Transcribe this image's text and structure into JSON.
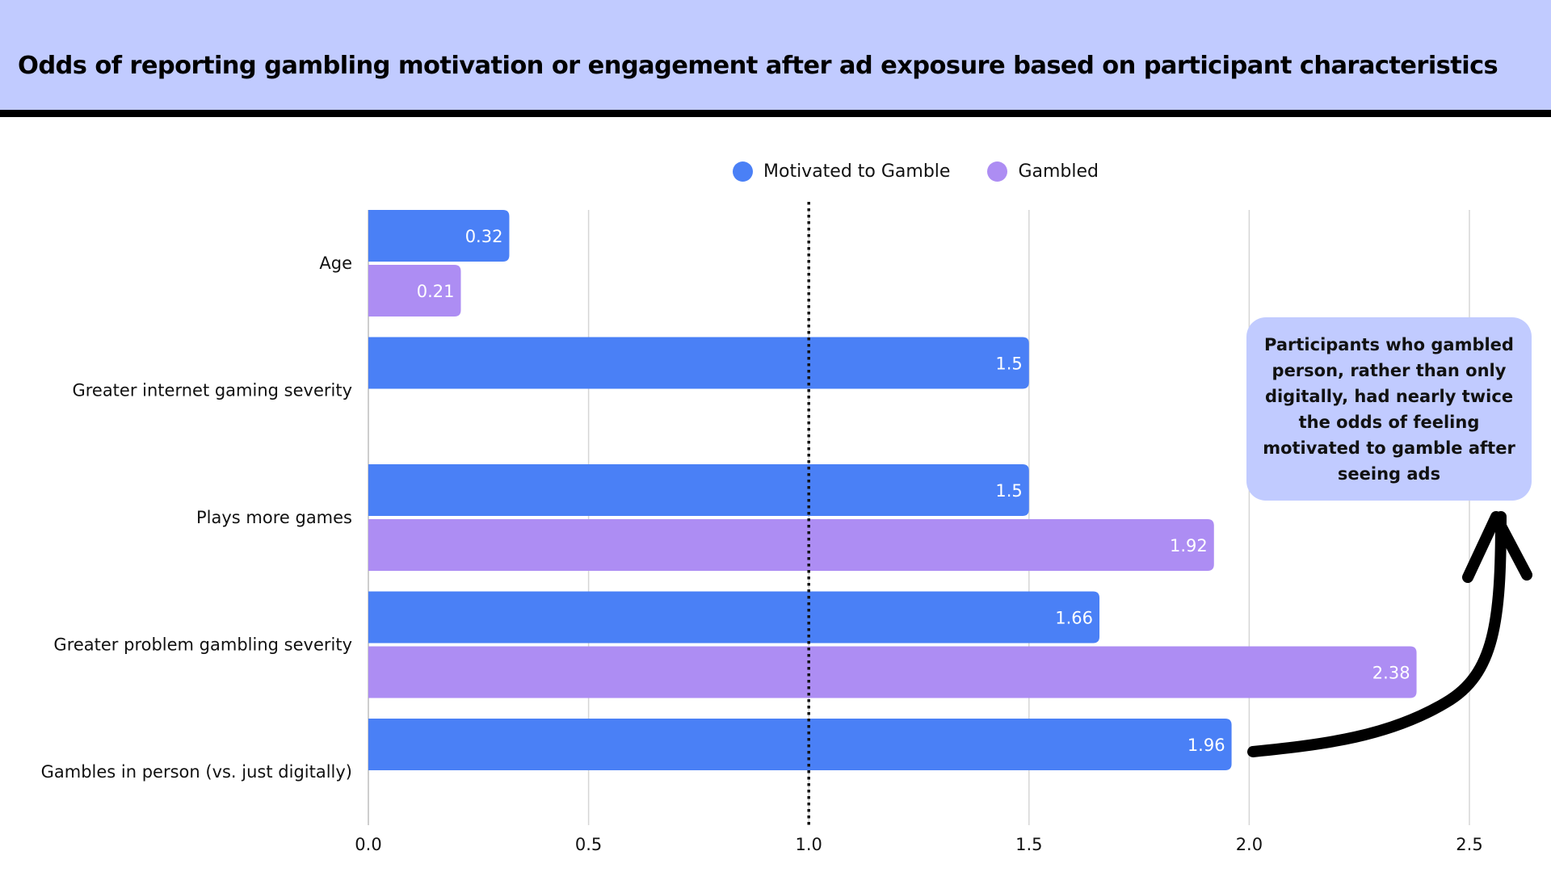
{
  "header": {
    "title": "Odds of reporting gambling motivation or engagement after ad exposure based on participant characteristics"
  },
  "legend": [
    {
      "label": "Motivated to Gamble",
      "color": "#4a80f6"
    },
    {
      "label": "Gambled",
      "color": "#ad8df3"
    }
  ],
  "callout": {
    "text": "Participants who gambled person, rather than only digitally, had nearly twice the odds of feeling motivated to gamble after seeing ads"
  },
  "colors": {
    "header_bg": "#c1cbff",
    "callout_bg": "#c1cbff",
    "motivated": "#4a80f6",
    "gambled": "#ad8df3",
    "grid": "#d6d6d6",
    "reference_line": "#111111",
    "arrow": "#000000"
  },
  "chart_data": {
    "type": "bar",
    "orientation": "horizontal",
    "title": "Odds of reporting gambling motivation or engagement after ad exposure based on participant characteristics",
    "xlabel": "",
    "ylabel": "",
    "categories": [
      "Age",
      "Greater internet gaming severity",
      "Plays more games",
      "Greater problem gambling severity",
      "Gambles in person (vs. just digitally)"
    ],
    "series": [
      {
        "name": "Motivated to Gamble",
        "values": [
          0.32,
          1.5,
          1.5,
          1.66,
          1.96
        ],
        "labels": [
          "0.32",
          "1.5",
          "1.5",
          "1.66",
          "1.96"
        ]
      },
      {
        "name": "Gambled",
        "values": [
          0.21,
          null,
          1.92,
          2.38,
          null
        ],
        "labels": [
          "0.21",
          "",
          "1.92",
          "2.38",
          ""
        ]
      }
    ],
    "xlim": [
      0,
      2.6
    ],
    "xticks": [
      0.0,
      0.5,
      1.0,
      1.5,
      2.0,
      2.5
    ],
    "xtick_labels": [
      "0.0",
      "0.5",
      "1.0",
      "1.5",
      "2.0",
      "2.5"
    ],
    "reference_line": {
      "x": 1.0,
      "style": "dotted"
    },
    "grid": "vertical",
    "legend_position": "top-center",
    "annotation": {
      "text": "Participants who gambled person, rather than only digitally, had nearly twice the odds of feeling motivated to gamble after seeing ads",
      "points_to": "Gambles in person (vs. just digitally)"
    }
  }
}
